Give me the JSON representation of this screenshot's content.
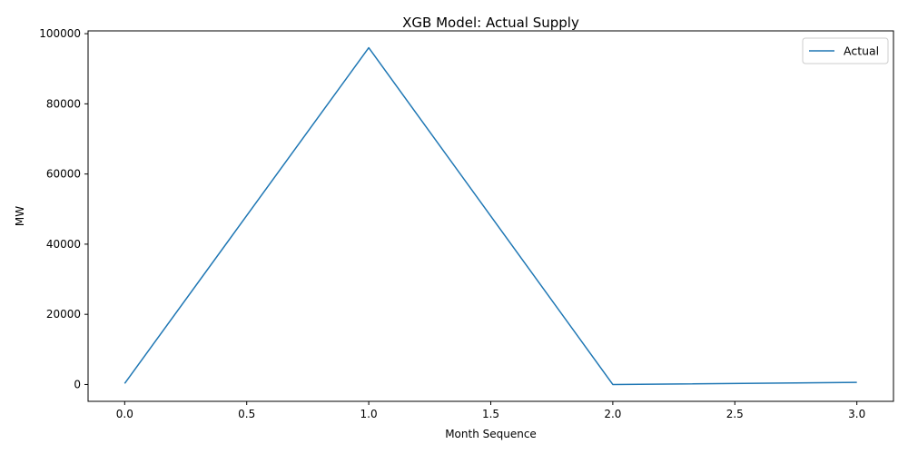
{
  "chart_data": {
    "type": "line",
    "title": "XGB Model: Actual Supply",
    "xlabel": "Month Sequence",
    "ylabel": "MW",
    "x": [
      0,
      1,
      2,
      3
    ],
    "series": [
      {
        "name": "Actual",
        "color": "#1f77b4",
        "values": [
          300,
          96000,
          0,
          600
        ]
      }
    ],
    "xlim": [
      -0.15,
      3.15
    ],
    "ylim": [
      -4800,
      100800
    ],
    "x_ticks": [
      0.0,
      0.5,
      1.0,
      1.5,
      2.0,
      2.5,
      3.0
    ],
    "x_tick_labels": [
      "0.0",
      "0.5",
      "1.0",
      "1.5",
      "2.0",
      "2.5",
      "3.0"
    ],
    "y_ticks": [
      0,
      20000,
      40000,
      60000,
      80000,
      100000
    ],
    "y_tick_labels": [
      "0",
      "20000",
      "40000",
      "60000",
      "80000",
      "100000"
    ],
    "grid": false,
    "legend_position": "top-right"
  }
}
